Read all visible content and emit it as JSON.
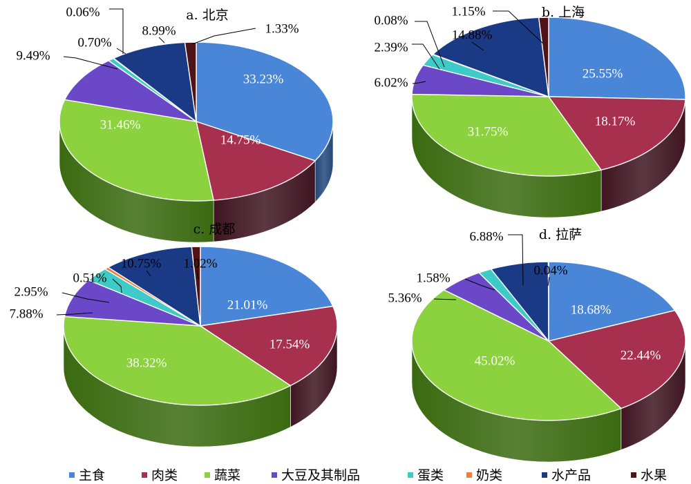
{
  "chart_data": [
    {
      "type": "pie",
      "title": "a. 北京",
      "categories": [
        "主食",
        "肉类",
        "蔬菜",
        "大豆及其制品",
        "蛋类",
        "奶类",
        "水产品",
        "水果"
      ],
      "labels": [
        "33.23%",
        "14.75%",
        "31.46%",
        "9.49%",
        "0.70%",
        "0.06%",
        "8.99%",
        "1.33%"
      ],
      "values": [
        33.23,
        14.75,
        31.46,
        9.49,
        0.7,
        0.06,
        8.99,
        1.33
      ]
    },
    {
      "type": "pie",
      "title": "b. 上海",
      "categories": [
        "主食",
        "肉类",
        "蔬菜",
        "大豆及其制品",
        "蛋类",
        "奶类",
        "水产品",
        "水果"
      ],
      "labels": [
        "25.55%",
        "18.17%",
        "31.75%",
        "6.02%",
        "2.39%",
        "0.08%",
        "14.88%",
        "1.15%"
      ],
      "values": [
        25.55,
        18.17,
        31.75,
        6.02,
        2.39,
        0.08,
        14.88,
        1.15
      ]
    },
    {
      "type": "pie",
      "title": "c. 成都",
      "categories": [
        "主食",
        "肉类",
        "蔬菜",
        "大豆及其制品",
        "蛋类",
        "奶类",
        "水产品",
        "水果"
      ],
      "labels": [
        "21.01%",
        "17.54%",
        "38.32%",
        "7.88%",
        "2.95%",
        "0.51%",
        "10.75%",
        "1.02%"
      ],
      "values": [
        21.01,
        17.54,
        38.32,
        7.88,
        2.95,
        0.51,
        10.75,
        1.02
      ]
    },
    {
      "type": "pie",
      "title": "d. 拉萨",
      "categories": [
        "主食",
        "肉类",
        "蔬菜",
        "大豆及其制品",
        "蛋类",
        "奶类",
        "水产品",
        "水果"
      ],
      "labels": [
        "18.68%",
        "22.44%",
        "45.02%",
        "5.36%",
        "1.58%",
        "",
        "6.88%",
        "0.04%"
      ],
      "values": [
        18.68,
        22.44,
        45.02,
        5.36,
        1.58,
        0.0,
        6.88,
        0.04
      ]
    }
  ],
  "legend": {
    "placement": "bottom",
    "items": [
      {
        "label": "主食",
        "color": "#4a86d8"
      },
      {
        "label": "肉类",
        "color": "#a8304f"
      },
      {
        "label": "蔬菜",
        "color": "#8cd13e"
      },
      {
        "label": "大豆及其制品",
        "color": "#6a48c8"
      },
      {
        "label": "蛋类",
        "color": "#3ecbc8"
      },
      {
        "label": "奶类",
        "color": "#f07f3c"
      },
      {
        "label": "水产品",
        "color": "#1a3a86"
      },
      {
        "label": "水果",
        "color": "#4e1418"
      }
    ]
  },
  "colors": {
    "side": [
      "#23477a",
      "#3e1520",
      "#3a6a10",
      "#2d1d62",
      "#1c6462",
      "#7a3a14",
      "#0c1a3e",
      "#240608"
    ],
    "inside_label": "#ffffff",
    "outside_label": "#000000"
  }
}
